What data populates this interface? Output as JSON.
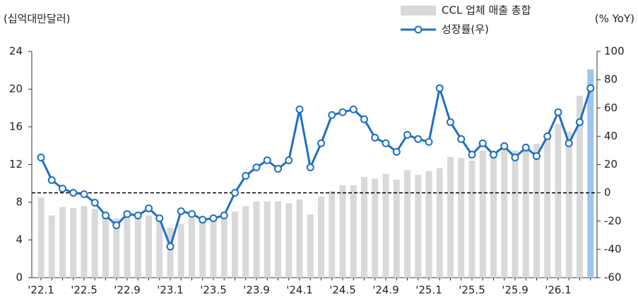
{
  "chart_data": {
    "type": "bar-line",
    "y_label": "(십억대만달러)",
    "y2_label": "(% YoY)",
    "categories": [
      "'22.1",
      null,
      null,
      null,
      "'22.5",
      null,
      null,
      null,
      "'22.9",
      null,
      null,
      null,
      "'23.1",
      null,
      null,
      null,
      "'23.5",
      null,
      null,
      null,
      "'23.9",
      null,
      null,
      null,
      "'24.1",
      null,
      null,
      null,
      "'24.5",
      null,
      null,
      null,
      "'24.9",
      null,
      null,
      null,
      "'25.1",
      null,
      null,
      null,
      "'25.5",
      null,
      null,
      null,
      "'25.9",
      null,
      null,
      null,
      "'26.1",
      null,
      null,
      null
    ],
    "series": [
      {
        "name": "CCL 업체 매출 총합",
        "type": "bar",
        "color": "#d9d9d9",
        "last_color": "#9fc5ec",
        "values": [
          8.5,
          6.6,
          7.5,
          7.4,
          7.6,
          7.3,
          6.6,
          6.3,
          6.6,
          6.8,
          6.6,
          6.4,
          5.3,
          5.7,
          6.3,
          6.1,
          6.1,
          6.3,
          7.0,
          7.6,
          8.1,
          8.1,
          8.1,
          7.9,
          8.3,
          6.7,
          8.6,
          9.2,
          9.8,
          9.8,
          10.7,
          10.5,
          11.0,
          10.4,
          11.4,
          10.9,
          11.3,
          11.6,
          12.8,
          12.7,
          12.4,
          13.5,
          13.3,
          13.6,
          13.5,
          13.9,
          14.2,
          15.2,
          16.3,
          15.5,
          19.3,
          22.1
        ]
      },
      {
        "name": "성장률(우)",
        "type": "line",
        "axis": "y2",
        "color": "#1f6fc0",
        "values": [
          25,
          9,
          3,
          0,
          -1,
          -7,
          -16,
          -23,
          -15,
          -16,
          -11,
          -18,
          -38,
          -13,
          -15,
          -19,
          -18,
          -16,
          0,
          12,
          18,
          23,
          17,
          23,
          59,
          18,
          35,
          55,
          57,
          59,
          52,
          39,
          35,
          29,
          41,
          38,
          36,
          74,
          50,
          38,
          27,
          35,
          27,
          33,
          25,
          32,
          26,
          40,
          57,
          35,
          50,
          74
        ]
      }
    ],
    "ylim": [
      0,
      24
    ],
    "yticks": [
      0,
      4,
      8,
      12,
      16,
      20,
      24
    ],
    "y2lim": [
      -60,
      100
    ],
    "y2ticks": [
      -60,
      -40,
      -20,
      0,
      20,
      40,
      60,
      80,
      100
    ],
    "reference_line": {
      "axis": "y2",
      "value": 0,
      "color": "#000000"
    }
  }
}
